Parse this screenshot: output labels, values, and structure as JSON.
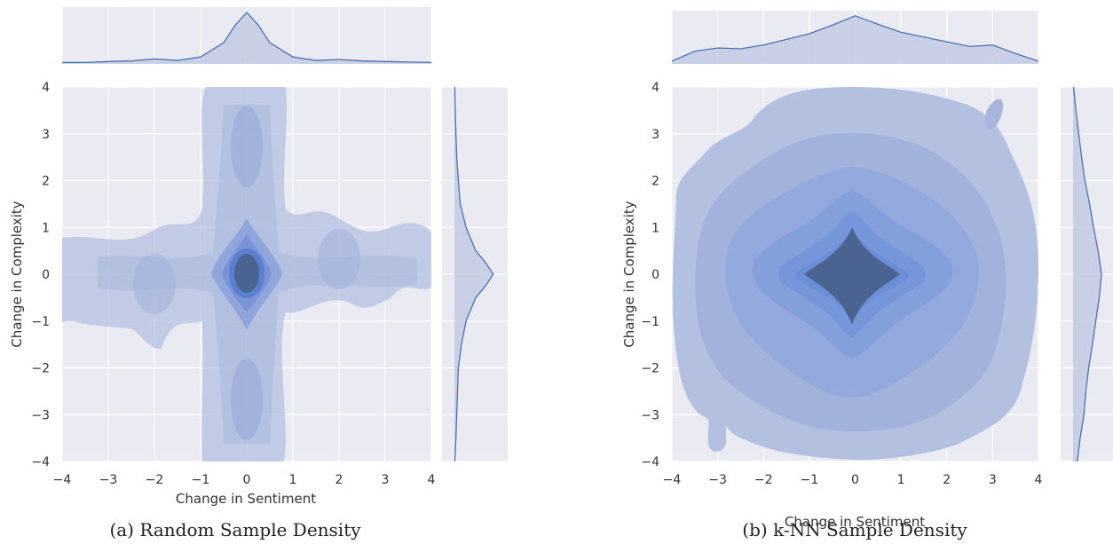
{
  "chart_data": [
    {
      "type": "heatmap",
      "kind": "kde-joint-plot",
      "caption": "(a) Random Sample Density",
      "xlabel": "Change in Sentiment",
      "ylabel": "Change in Complexity",
      "xlim": [
        -4,
        4
      ],
      "ylim": [
        -4,
        4
      ],
      "xticks": [
        -4,
        -3,
        -2,
        -1,
        0,
        1,
        2,
        3,
        4
      ],
      "yticks": [
        -4,
        -3,
        -2,
        -1,
        0,
        1,
        2,
        3,
        4
      ],
      "grid": true,
      "peak": [
        0,
        0
      ],
      "density_modes": [
        {
          "x": 0,
          "y": 0,
          "weight": 1.0
        },
        {
          "x": 0,
          "y": 2.6,
          "weight": 0.25
        },
        {
          "x": 0,
          "y": -2.5,
          "weight": 0.25
        },
        {
          "x": -2,
          "y": -0.2,
          "weight": 0.22
        },
        {
          "x": 2,
          "y": 0.3,
          "weight": 0.22
        }
      ],
      "marginal_x": {
        "x": [
          -4,
          -3.5,
          -3,
          -2.5,
          -2,
          -1.5,
          -1,
          -0.5,
          -0.25,
          0,
          0.25,
          0.5,
          1,
          1.5,
          2,
          2.5,
          3,
          3.5,
          4
        ],
        "density": [
          0.01,
          0.01,
          0.03,
          0.04,
          0.08,
          0.05,
          0.12,
          0.4,
          0.75,
          1.0,
          0.75,
          0.4,
          0.12,
          0.05,
          0.07,
          0.04,
          0.03,
          0.02,
          0.01
        ]
      },
      "marginal_y": {
        "y": [
          -4,
          -3.5,
          -3,
          -2.5,
          -2,
          -1.5,
          -1,
          -0.5,
          -0.25,
          0,
          0.25,
          0.5,
          1,
          1.5,
          2,
          2.5,
          3,
          3.5,
          4
        ],
        "density": [
          0.01,
          0.04,
          0.06,
          0.08,
          0.1,
          0.18,
          0.3,
          0.55,
          0.8,
          1.0,
          0.8,
          0.55,
          0.3,
          0.15,
          0.1,
          0.06,
          0.04,
          0.02,
          0.01
        ]
      }
    },
    {
      "type": "heatmap",
      "kind": "kde-joint-plot",
      "caption": "(b) k-NN Sample Density",
      "xlabel": "Change in Sentiment",
      "ylabel": "Change in Complexity",
      "xlim": [
        -4,
        4
      ],
      "ylim": [
        -4,
        4
      ],
      "xticks": [
        -4,
        -3,
        -2,
        -1,
        0,
        1,
        2,
        3,
        4
      ],
      "yticks": [
        -4,
        -3,
        -2,
        -1,
        0,
        1,
        2,
        3,
        4
      ],
      "grid": true,
      "peak": [
        0,
        0
      ],
      "density_modes": [
        {
          "x": 0,
          "y": 0,
          "weight": 1.0
        },
        {
          "x": 3.0,
          "y": 3.5,
          "weight": 0.08
        },
        {
          "x": -3.0,
          "y": -3.5,
          "weight": 0.08
        }
      ],
      "marginal_x": {
        "x": [
          -4,
          -3.5,
          -3,
          -2.5,
          -2,
          -1.5,
          -1,
          -0.5,
          0,
          0.5,
          1,
          1.5,
          2,
          2.5,
          3,
          3.5,
          4
        ],
        "density": [
          0.04,
          0.25,
          0.32,
          0.3,
          0.38,
          0.5,
          0.62,
          0.8,
          1.0,
          0.82,
          0.65,
          0.55,
          0.45,
          0.35,
          0.38,
          0.2,
          0.04
        ]
      },
      "marginal_y": {
        "y": [
          -4,
          -3.5,
          -3,
          -2.5,
          -2,
          -1.5,
          -1,
          -0.5,
          0,
          0.5,
          1,
          1.5,
          2,
          2.5,
          3,
          3.5,
          4
        ],
        "density": [
          0.15,
          0.25,
          0.38,
          0.45,
          0.55,
          0.68,
          0.8,
          0.92,
          1.0,
          0.88,
          0.72,
          0.58,
          0.42,
          0.3,
          0.2,
          0.1,
          0.02
        ]
      }
    }
  ],
  "colors": {
    "background": "#eaeaf2",
    "grid": "#ffffff",
    "line": "#4c72b0",
    "fill_light": "#b4c0e0",
    "fill_dark": "#4b6391"
  }
}
